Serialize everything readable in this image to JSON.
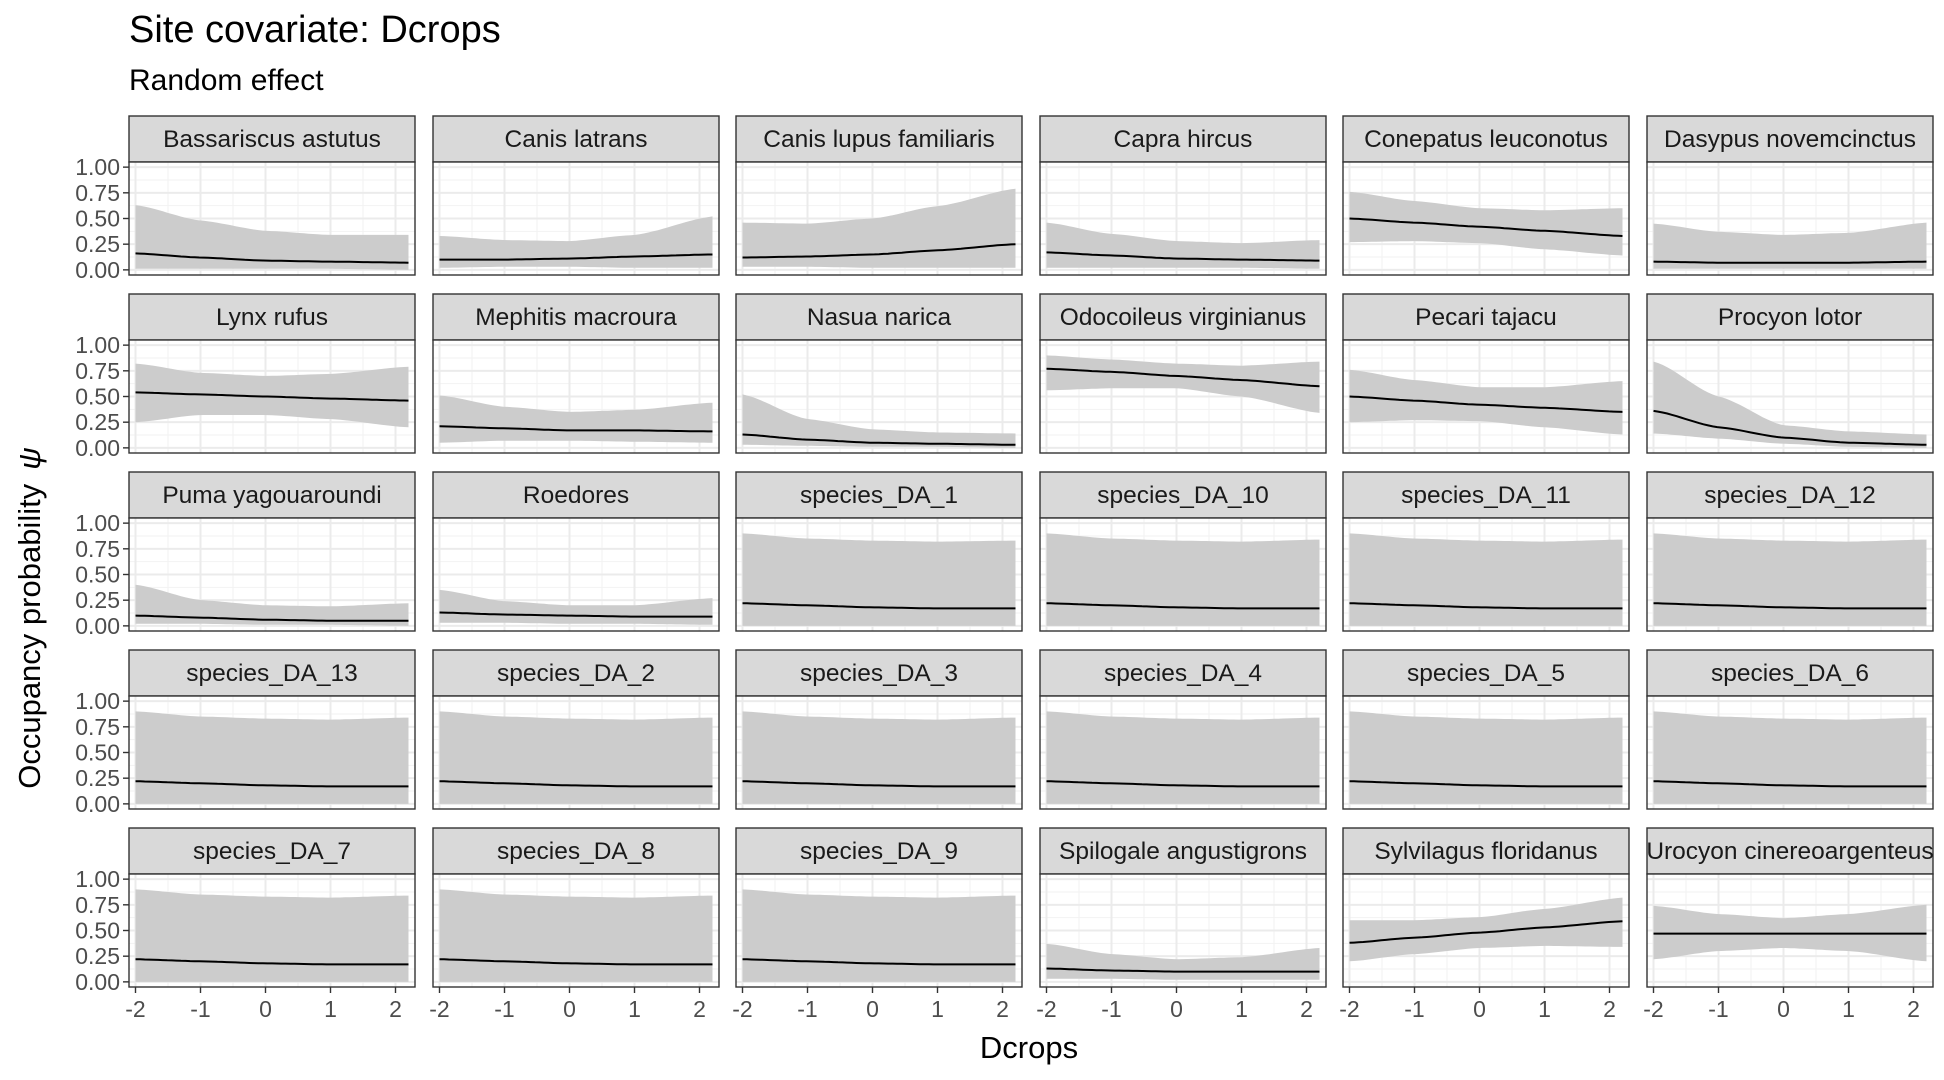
{
  "title": "Site covariate: Dcrops",
  "subtitle": "Random effect",
  "chart_data": {
    "type": "line",
    "xlabel": "Dcrops",
    "ylabel": "Occupancy probability",
    "ylabel_symbol": "ψ",
    "xlim": [
      -2.1,
      2.3
    ],
    "ylim": [
      -0.05,
      1.05
    ],
    "xticks": [
      -2,
      -1,
      0,
      1,
      2
    ],
    "xtick_labels": [
      "-2",
      "-1",
      "0",
      "1",
      "2"
    ],
    "yticks": [
      0,
      0.25,
      0.5,
      0.75,
      1
    ],
    "ytick_labels": [
      "0.00",
      "0.25",
      "0.50",
      "0.75",
      "1.00"
    ],
    "grid": true,
    "ribbon_color": "#cccccc",
    "line_color": "#000000",
    "strip_fill": "#d9d9d9",
    "x": [
      -2,
      -1,
      0,
      1,
      2.2
    ],
    "facets": [
      {
        "name": "Bassariscus astutus",
        "mean": [
          0.16,
          0.12,
          0.09,
          0.08,
          0.07
        ],
        "lower": [
          0.01,
          0.01,
          0.01,
          0.01,
          0.0
        ],
        "upper": [
          0.63,
          0.48,
          0.38,
          0.34,
          0.34
        ]
      },
      {
        "name": "Canis latrans",
        "mean": [
          0.1,
          0.1,
          0.11,
          0.13,
          0.15
        ],
        "lower": [
          0.02,
          0.03,
          0.03,
          0.02,
          0.02
        ],
        "upper": [
          0.33,
          0.29,
          0.28,
          0.34,
          0.52
        ]
      },
      {
        "name": "Canis lupus familiaris",
        "mean": [
          0.12,
          0.13,
          0.15,
          0.19,
          0.25
        ],
        "lower": [
          0.03,
          0.03,
          0.02,
          0.02,
          0.02
        ],
        "upper": [
          0.46,
          0.45,
          0.5,
          0.62,
          0.79
        ]
      },
      {
        "name": "Capra hircus",
        "mean": [
          0.17,
          0.14,
          0.11,
          0.1,
          0.09
        ],
        "lower": [
          0.02,
          0.02,
          0.02,
          0.02,
          0.01
        ],
        "upper": [
          0.46,
          0.35,
          0.28,
          0.26,
          0.29
        ]
      },
      {
        "name": "Conepatus leuconotus",
        "mean": [
          0.5,
          0.46,
          0.42,
          0.38,
          0.33
        ],
        "lower": [
          0.27,
          0.28,
          0.26,
          0.2,
          0.14
        ],
        "upper": [
          0.76,
          0.67,
          0.6,
          0.58,
          0.6
        ]
      },
      {
        "name": "Dasypus novemcinctus",
        "mean": [
          0.08,
          0.07,
          0.07,
          0.07,
          0.08
        ],
        "lower": [
          0.01,
          0.01,
          0.01,
          0.01,
          0.01
        ],
        "upper": [
          0.45,
          0.37,
          0.34,
          0.36,
          0.46
        ]
      },
      {
        "name": "Lynx rufus",
        "mean": [
          0.54,
          0.52,
          0.5,
          0.48,
          0.46
        ],
        "lower": [
          0.25,
          0.32,
          0.32,
          0.28,
          0.2
        ],
        "upper": [
          0.82,
          0.73,
          0.7,
          0.72,
          0.79
        ]
      },
      {
        "name": "Mephitis macroura",
        "mean": [
          0.21,
          0.19,
          0.17,
          0.17,
          0.16
        ],
        "lower": [
          0.05,
          0.07,
          0.07,
          0.06,
          0.05
        ],
        "upper": [
          0.51,
          0.4,
          0.35,
          0.37,
          0.44
        ]
      },
      {
        "name": "Nasua narica",
        "mean": [
          0.13,
          0.08,
          0.05,
          0.04,
          0.03
        ],
        "lower": [
          0.03,
          0.02,
          0.01,
          0.01,
          0.0
        ],
        "upper": [
          0.52,
          0.28,
          0.18,
          0.15,
          0.14
        ]
      },
      {
        "name": "Odocoileus virginianus",
        "mean": [
          0.77,
          0.74,
          0.7,
          0.66,
          0.6
        ],
        "lower": [
          0.56,
          0.58,
          0.58,
          0.5,
          0.34
        ],
        "upper": [
          0.9,
          0.86,
          0.82,
          0.8,
          0.84
        ]
      },
      {
        "name": "Pecari tajacu",
        "mean": [
          0.5,
          0.46,
          0.42,
          0.39,
          0.35
        ],
        "lower": [
          0.25,
          0.27,
          0.26,
          0.2,
          0.13
        ],
        "upper": [
          0.76,
          0.66,
          0.59,
          0.59,
          0.65
        ]
      },
      {
        "name": "Procyon lotor",
        "mean": [
          0.36,
          0.2,
          0.1,
          0.05,
          0.03
        ],
        "lower": [
          0.14,
          0.09,
          0.04,
          0.01,
          0.0
        ],
        "upper": [
          0.84,
          0.5,
          0.22,
          0.16,
          0.13
        ]
      },
      {
        "name": "Puma yagouaroundi",
        "mean": [
          0.1,
          0.08,
          0.06,
          0.05,
          0.05
        ],
        "lower": [
          0.02,
          0.02,
          0.01,
          0.01,
          0.0
        ],
        "upper": [
          0.4,
          0.25,
          0.2,
          0.19,
          0.22
        ]
      },
      {
        "name": "Roedores",
        "mean": [
          0.13,
          0.11,
          0.1,
          0.09,
          0.09
        ],
        "lower": [
          0.03,
          0.03,
          0.02,
          0.02,
          0.01
        ],
        "upper": [
          0.35,
          0.24,
          0.2,
          0.2,
          0.27
        ]
      },
      {
        "name": "species_DA_1",
        "mean": [
          0.22,
          0.2,
          0.18,
          0.17,
          0.17
        ],
        "lower": [
          0.0,
          0.0,
          0.0,
          0.0,
          0.0
        ],
        "upper": [
          0.9,
          0.85,
          0.83,
          0.82,
          0.83
        ]
      },
      {
        "name": "species_DA_10",
        "mean": [
          0.22,
          0.2,
          0.18,
          0.17,
          0.17
        ],
        "lower": [
          0.0,
          0.0,
          0.0,
          0.0,
          0.0
        ],
        "upper": [
          0.9,
          0.85,
          0.83,
          0.82,
          0.84
        ]
      },
      {
        "name": "species_DA_11",
        "mean": [
          0.22,
          0.2,
          0.18,
          0.17,
          0.17
        ],
        "lower": [
          0.0,
          0.0,
          0.0,
          0.0,
          0.0
        ],
        "upper": [
          0.9,
          0.85,
          0.83,
          0.82,
          0.84
        ]
      },
      {
        "name": "species_DA_12",
        "mean": [
          0.22,
          0.2,
          0.18,
          0.17,
          0.17
        ],
        "lower": [
          0.0,
          0.0,
          0.0,
          0.0,
          0.0
        ],
        "upper": [
          0.9,
          0.85,
          0.83,
          0.82,
          0.84
        ]
      },
      {
        "name": "species_DA_13",
        "mean": [
          0.22,
          0.2,
          0.18,
          0.17,
          0.17
        ],
        "lower": [
          0.0,
          0.0,
          0.0,
          0.0,
          0.0
        ],
        "upper": [
          0.9,
          0.85,
          0.83,
          0.82,
          0.84
        ]
      },
      {
        "name": "species_DA_2",
        "mean": [
          0.22,
          0.2,
          0.18,
          0.17,
          0.17
        ],
        "lower": [
          0.0,
          0.0,
          0.0,
          0.0,
          0.0
        ],
        "upper": [
          0.9,
          0.85,
          0.83,
          0.82,
          0.84
        ]
      },
      {
        "name": "species_DA_3",
        "mean": [
          0.22,
          0.2,
          0.18,
          0.17,
          0.17
        ],
        "lower": [
          0.0,
          0.0,
          0.0,
          0.0,
          0.0
        ],
        "upper": [
          0.9,
          0.85,
          0.83,
          0.82,
          0.84
        ]
      },
      {
        "name": "species_DA_4",
        "mean": [
          0.22,
          0.2,
          0.18,
          0.17,
          0.17
        ],
        "lower": [
          0.0,
          0.0,
          0.0,
          0.0,
          0.0
        ],
        "upper": [
          0.9,
          0.85,
          0.83,
          0.82,
          0.84
        ]
      },
      {
        "name": "species_DA_5",
        "mean": [
          0.22,
          0.2,
          0.18,
          0.17,
          0.17
        ],
        "lower": [
          0.0,
          0.0,
          0.0,
          0.0,
          0.0
        ],
        "upper": [
          0.9,
          0.85,
          0.83,
          0.82,
          0.84
        ]
      },
      {
        "name": "species_DA_6",
        "mean": [
          0.22,
          0.2,
          0.18,
          0.17,
          0.17
        ],
        "lower": [
          0.0,
          0.0,
          0.0,
          0.0,
          0.0
        ],
        "upper": [
          0.9,
          0.85,
          0.83,
          0.82,
          0.84
        ]
      },
      {
        "name": "species_DA_7",
        "mean": [
          0.22,
          0.2,
          0.18,
          0.17,
          0.17
        ],
        "lower": [
          0.0,
          0.0,
          0.0,
          0.0,
          0.0
        ],
        "upper": [
          0.9,
          0.85,
          0.83,
          0.82,
          0.84
        ]
      },
      {
        "name": "species_DA_8",
        "mean": [
          0.22,
          0.2,
          0.18,
          0.17,
          0.17
        ],
        "lower": [
          0.0,
          0.0,
          0.0,
          0.0,
          0.0
        ],
        "upper": [
          0.9,
          0.85,
          0.83,
          0.82,
          0.84
        ]
      },
      {
        "name": "species_DA_9",
        "mean": [
          0.22,
          0.2,
          0.18,
          0.17,
          0.17
        ],
        "lower": [
          0.0,
          0.0,
          0.0,
          0.0,
          0.0
        ],
        "upper": [
          0.9,
          0.85,
          0.83,
          0.82,
          0.84
        ]
      },
      {
        "name": "Spilogale angustigrons",
        "mean": [
          0.13,
          0.11,
          0.1,
          0.1,
          0.1
        ],
        "lower": [
          0.03,
          0.03,
          0.02,
          0.02,
          0.02
        ],
        "upper": [
          0.37,
          0.27,
          0.22,
          0.24,
          0.33
        ]
      },
      {
        "name": "Sylvilagus floridanus",
        "mean": [
          0.38,
          0.43,
          0.48,
          0.53,
          0.59
        ],
        "lower": [
          0.2,
          0.27,
          0.33,
          0.35,
          0.34
        ],
        "upper": [
          0.6,
          0.6,
          0.63,
          0.71,
          0.82
        ]
      },
      {
        "name": "Urocyon cinereoargenteus",
        "mean": [
          0.47,
          0.47,
          0.47,
          0.47,
          0.47
        ],
        "lower": [
          0.22,
          0.3,
          0.33,
          0.3,
          0.2
        ],
        "upper": [
          0.74,
          0.66,
          0.62,
          0.66,
          0.75
        ]
      }
    ]
  }
}
